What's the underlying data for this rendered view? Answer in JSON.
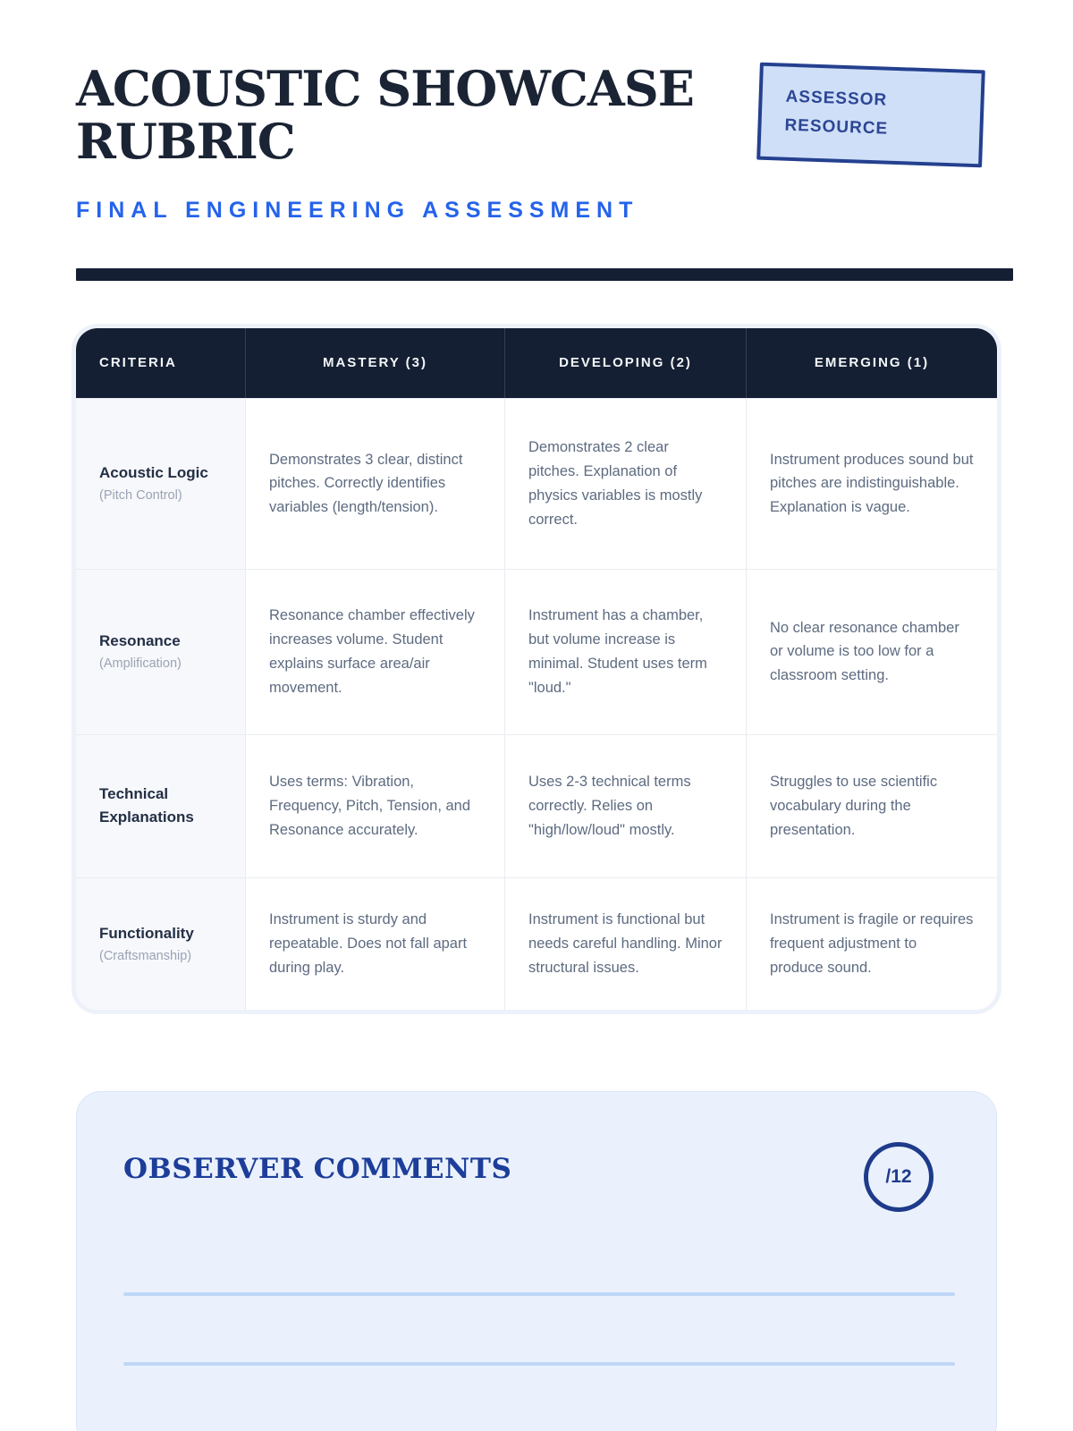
{
  "header": {
    "title": "ACOUSTIC SHOWCASE RUBRIC",
    "subtitle": "FINAL ENGINEERING ASSESSMENT",
    "badge": {
      "line1": "ASSESSOR",
      "line2": "RESOURCE"
    }
  },
  "colors": {
    "navy": "#141f33",
    "accent_blue": "#2563eb",
    "badge_bg": "#cfdff8",
    "badge_border": "#24408f",
    "comments_bg": "#eaf1fc",
    "comments_accent": "#1c3d99",
    "ruled_line": "#bfd7f7",
    "criteria_col_bg": "#f7f8fb",
    "body_text": "#5d6b80"
  },
  "table": {
    "columns": [
      "CRITERIA",
      "MASTERY (3)",
      "DEVELOPING (2)",
      "EMERGING (1)"
    ],
    "rows": [
      {
        "criterion": "Acoustic Logic",
        "criterion_sub": "(Pitch Control)",
        "mastery": "Demonstrates 3 clear, distinct pitches. Correctly identifies variables (length/tension).",
        "developing": "Demonstrates 2 clear pitches. Explanation of physics variables is mostly correct.",
        "emerging": "Instrument produces sound but pitches are indistinguishable. Explanation is vague."
      },
      {
        "criterion": "Resonance",
        "criterion_sub": "(Amplification)",
        "mastery": "Resonance chamber effectively increases volume. Student explains surface area/air movement.",
        "developing": "Instrument has a chamber, but volume increase is minimal. Student uses term \"loud.\"",
        "emerging": "No clear resonance chamber or volume is too low for a classroom setting."
      },
      {
        "criterion": "Technical Explanations",
        "criterion_sub": "",
        "mastery": "Uses terms: Vibration, Frequency, Pitch, Tension, and Resonance accurately.",
        "developing": "Uses 2-3 technical terms correctly. Relies on \"high/low/loud\" mostly.",
        "emerging": "Struggles to use scientific vocabulary during the presentation."
      },
      {
        "criterion": "Functionality",
        "criterion_sub": "(Craftsmanship)",
        "mastery": "Instrument is sturdy and repeatable. Does not fall apart during play.",
        "developing": "Instrument is functional but needs careful handling. Minor structural issues.",
        "emerging": "Instrument is fragile or requires frequent adjustment to produce sound."
      }
    ]
  },
  "comments": {
    "title": "OBSERVER COMMENTS",
    "score_label": "/12"
  }
}
